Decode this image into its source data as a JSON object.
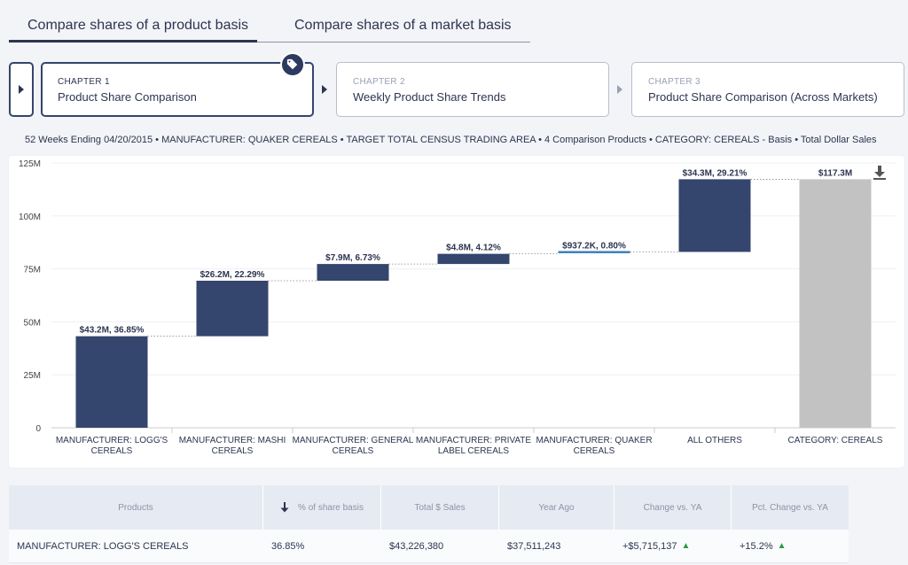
{
  "tabs": [
    {
      "label": "Compare shares of a product basis",
      "active": true
    },
    {
      "label": "Compare shares of a market basis",
      "active": false
    }
  ],
  "chapters": [
    {
      "num": "CHAPTER 1",
      "title": "Product Share Comparison",
      "active": true
    },
    {
      "num": "CHAPTER 2",
      "title": "Weekly Product Share Trends",
      "active": false
    },
    {
      "num": "CHAPTER 3",
      "title": "Product Share Comparison (Across Markets)",
      "active": false
    }
  ],
  "filters": "52 Weeks Ending 04/20/2015  •  MANUFACTURER: QUAKER CEREALS  •  TARGET TOTAL CENSUS TRADING AREA  •  4 Comparison Products  •  CATEGORY: CEREALS - Basis  •  Total Dollar Sales",
  "colors": {
    "bar": "#34456e",
    "highlight": "#3d7fc1",
    "total": "#c2c2c2"
  },
  "icons": {
    "download": "download-icon",
    "tag": "tag-icon",
    "sort": "arrow-down-icon",
    "toggle": "play-icon"
  },
  "chart_data": {
    "type": "waterfall",
    "ylim": [
      0,
      125
    ],
    "yticks": [
      "0",
      "25M",
      "50M",
      "75M",
      "100M",
      "125M"
    ],
    "ytick_values": [
      0,
      25,
      50,
      75,
      100,
      125
    ],
    "unit": "M",
    "bars": [
      {
        "category": [
          "MANUFACTURER: LOGG'S",
          "CEREALS"
        ],
        "start": 0,
        "end": 43.2,
        "label": "$43.2M, 36.85%",
        "kind": "bar"
      },
      {
        "category": [
          "MANUFACTURER: MASHI",
          "CEREALS"
        ],
        "start": 43.2,
        "end": 69.4,
        "label": "$26.2M, 22.29%",
        "kind": "bar"
      },
      {
        "category": [
          "MANUFACTURER: GENERAL",
          "CEREALS"
        ],
        "start": 69.4,
        "end": 77.3,
        "label": "$7.9M, 6.73%",
        "kind": "bar"
      },
      {
        "category": [
          "MANUFACTURER: PRIVATE",
          "LABEL CEREALS"
        ],
        "start": 77.3,
        "end": 82.1,
        "label": "$4.8M, 4.12%",
        "kind": "bar"
      },
      {
        "category": [
          "MANUFACTURER: QUAKER",
          "CEREALS"
        ],
        "start": 82.1,
        "end": 83.0,
        "label": "$937.2K, 0.80%",
        "kind": "highlight"
      },
      {
        "category": [
          "ALL OTHERS"
        ],
        "start": 83.0,
        "end": 117.3,
        "label": "$34.3M, 29.21%",
        "kind": "bar"
      },
      {
        "category": [
          "CATEGORY: CEREALS"
        ],
        "start": 0,
        "end": 117.3,
        "label": "$117.3M",
        "kind": "total"
      }
    ]
  },
  "table": {
    "headers": [
      "Products",
      "% of share basis",
      "Total $ Sales",
      "Year Ago",
      "Change vs. YA",
      "Pct. Change vs. YA"
    ],
    "rows": [
      {
        "product": "MANUFACTURER: LOGG'S CEREALS",
        "share": "36.85%",
        "sales": "$43,226,380",
        "year_ago": "$37,511,243",
        "change": "+$5,715,137",
        "pct_change": "+15.2%",
        "up": "▲"
      }
    ]
  }
}
